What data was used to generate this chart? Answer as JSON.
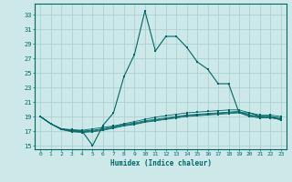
{
  "xlabel": "Humidex (Indice chaleur)",
  "bg_color": "#cce8e8",
  "grid_color": "#a8cccc",
  "line_color": "#006666",
  "xlim": [
    -0.5,
    23.5
  ],
  "ylim": [
    14.5,
    34.5
  ],
  "xticks": [
    0,
    1,
    2,
    3,
    4,
    5,
    6,
    7,
    8,
    9,
    10,
    11,
    12,
    13,
    14,
    15,
    16,
    17,
    18,
    19,
    20,
    21,
    22,
    23
  ],
  "yticks": [
    15,
    17,
    19,
    21,
    23,
    25,
    27,
    29,
    31,
    33
  ],
  "main_x": [
    0,
    1,
    2,
    3,
    4,
    5,
    6,
    7,
    8,
    9,
    10,
    11,
    12,
    13,
    14,
    15,
    16,
    17,
    18,
    19,
    20,
    21,
    22,
    23
  ],
  "main_y": [
    19,
    18,
    17.3,
    17,
    17,
    15,
    17.8,
    19.5,
    24.5,
    27.5,
    33.5,
    28,
    30,
    30,
    28.5,
    26.5,
    25.5,
    23.5,
    23.5,
    19.5,
    19.5,
    19,
    19,
    18.5
  ],
  "flat1_x": [
    0,
    1,
    2,
    3,
    4,
    5,
    6,
    7,
    8,
    9,
    10,
    11,
    12,
    13,
    14,
    15,
    16,
    17,
    18,
    19,
    20,
    21,
    22,
    23
  ],
  "flat1_y": [
    19,
    18,
    17.3,
    17.2,
    17.1,
    17.3,
    17.5,
    17.7,
    18.0,
    18.3,
    18.6,
    18.9,
    19.1,
    19.3,
    19.5,
    19.6,
    19.7,
    19.8,
    19.9,
    19.9,
    19.5,
    19.2,
    19.2,
    19.0
  ],
  "flat2_x": [
    0,
    1,
    2,
    3,
    4,
    5,
    6,
    7,
    8,
    9,
    10,
    11,
    12,
    13,
    14,
    15,
    16,
    17,
    18,
    19,
    20,
    21,
    22,
    23
  ],
  "flat2_y": [
    19,
    18,
    17.3,
    17.1,
    17.0,
    17.1,
    17.3,
    17.6,
    17.9,
    18.1,
    18.4,
    18.6,
    18.8,
    19.0,
    19.2,
    19.3,
    19.4,
    19.5,
    19.6,
    19.7,
    19.2,
    19.0,
    19.0,
    18.8
  ],
  "flat3_x": [
    0,
    1,
    2,
    3,
    4,
    5,
    6,
    7,
    8,
    9,
    10,
    11,
    12,
    13,
    14,
    15,
    16,
    17,
    18,
    19,
    20,
    21,
    22,
    23
  ],
  "flat3_y": [
    19,
    18,
    17.3,
    17.0,
    16.9,
    17.0,
    17.2,
    17.5,
    17.8,
    18.0,
    18.3,
    18.5,
    18.7,
    18.9,
    19.1,
    19.2,
    19.3,
    19.4,
    19.5,
    19.6,
    19.1,
    18.9,
    18.9,
    18.7
  ],
  "flat4_x": [
    0,
    1,
    2,
    3,
    4,
    5,
    6,
    7,
    8,
    9,
    10,
    11,
    12,
    13,
    14,
    15,
    16,
    17,
    18,
    19,
    20,
    21,
    22,
    23
  ],
  "flat4_y": [
    19,
    18,
    17.2,
    16.9,
    16.8,
    16.9,
    17.1,
    17.4,
    17.7,
    17.9,
    18.2,
    18.4,
    18.6,
    18.8,
    19.0,
    19.1,
    19.2,
    19.3,
    19.4,
    19.5,
    19.0,
    18.8,
    18.8,
    18.6
  ]
}
